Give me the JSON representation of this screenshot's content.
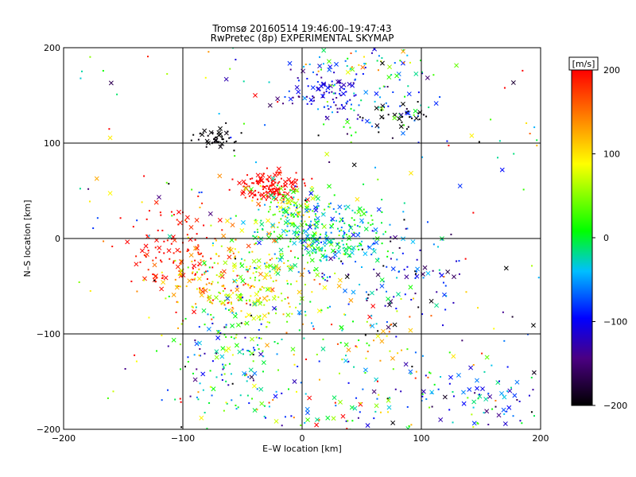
{
  "chart_data": {
    "type": "scatter",
    "title": "Tromsø 20160514 19:46:00–19:47:43",
    "subtitle": "RwPretec (8p) EXPERIMENTAL SKYMAP",
    "xlabel": "E–W location [km]",
    "ylabel": "N–S location [km]",
    "xlim": [
      -200,
      200
    ],
    "ylim": [
      -200,
      200
    ],
    "xticks": [
      -200,
      -100,
      0,
      100,
      200
    ],
    "yticks": [
      -200,
      -100,
      0,
      100,
      200
    ],
    "grid": true,
    "colorbar": {
      "label": "[m/s]",
      "range": [
        -200,
        200
      ],
      "ticks": [
        200,
        100,
        0,
        -100,
        -200
      ],
      "colors": [
        "#000000",
        "#4b0082",
        "#0000ff",
        "#00bfff",
        "#00ff00",
        "#ffff00",
        "#ff7f00",
        "#ff0000"
      ]
    },
    "markers": [
      "dot",
      "x"
    ],
    "clusters": [
      {
        "x": -75,
        "y": 105,
        "sx": 10,
        "sy": 6,
        "n": 40,
        "v": -200,
        "vs": 5
      },
      {
        "x": -27,
        "y": 55,
        "sx": 14,
        "sy": 8,
        "n": 140,
        "v": 200,
        "vs": 8
      },
      {
        "x": -12,
        "y": 30,
        "sx": 15,
        "sy": 12,
        "n": 90,
        "v": 60,
        "vs": 40
      },
      {
        "x": 15,
        "y": 5,
        "sx": 28,
        "sy": 20,
        "n": 320,
        "v": -20,
        "vs": 35
      },
      {
        "x": -105,
        "y": -15,
        "sx": 22,
        "sy": 25,
        "n": 110,
        "v": 195,
        "vs": 10
      },
      {
        "x": -70,
        "y": -40,
        "sx": 25,
        "sy": 25,
        "n": 150,
        "v": 120,
        "vs": 50
      },
      {
        "x": -30,
        "y": -50,
        "sx": 25,
        "sy": 22,
        "n": 160,
        "v": 70,
        "vs": 50
      },
      {
        "x": -60,
        "y": -120,
        "sx": 22,
        "sy": 30,
        "n": 140,
        "v": -50,
        "vs": 70
      },
      {
        "x": 20,
        "y": 155,
        "sx": 20,
        "sy": 12,
        "n": 90,
        "v": -110,
        "vs": 25
      },
      {
        "x": 55,
        "y": 140,
        "sx": 28,
        "sy": 20,
        "n": 80,
        "v": -60,
        "vs": 70
      },
      {
        "x": 85,
        "y": 125,
        "sx": 12,
        "sy": 8,
        "n": 25,
        "v": -200,
        "vs": 10
      },
      {
        "x": 60,
        "y": 185,
        "sx": 30,
        "sy": 10,
        "n": 50,
        "v": 20,
        "vs": 80
      },
      {
        "x": 80,
        "y": -40,
        "sx": 25,
        "sy": 25,
        "n": 90,
        "v": -120,
        "vs": 70
      },
      {
        "x": 50,
        "y": -120,
        "sx": 40,
        "sy": 40,
        "n": 100,
        "v": 40,
        "vs": 90
      },
      {
        "x": 150,
        "y": -170,
        "sx": 35,
        "sy": 20,
        "n": 90,
        "v": -80,
        "vs": 60
      },
      {
        "x": 20,
        "y": -180,
        "sx": 40,
        "sy": 15,
        "n": 50,
        "v": 0,
        "vs": 100
      }
    ],
    "background": {
      "n": 200,
      "xlim": [
        -200,
        200
      ],
      "ylim": [
        -200,
        200
      ],
      "v": 0,
      "vs": 120
    }
  }
}
